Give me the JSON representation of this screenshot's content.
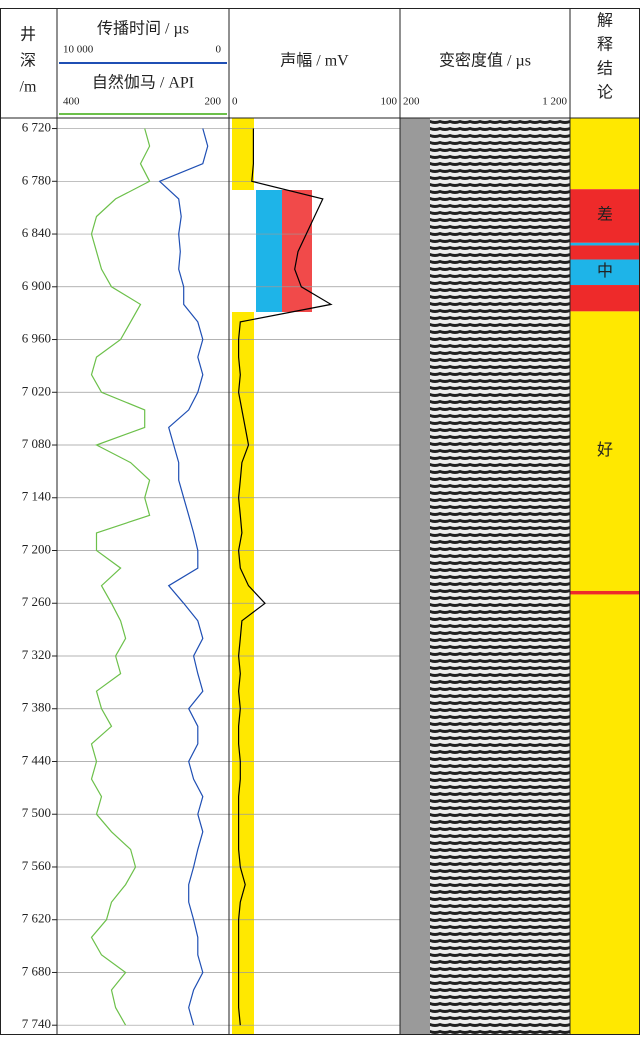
{
  "chart_data": {
    "type": "well-log",
    "depth_title": [
      "井",
      "深",
      "/m"
    ],
    "ylim": [
      6708,
      7750
    ],
    "yticks": [
      {
        "value": 6720,
        "label": "6 720"
      },
      {
        "value": 6780,
        "label": "6 780"
      },
      {
        "value": 6840,
        "label": "6 840"
      },
      {
        "value": 6900,
        "label": "6 900"
      },
      {
        "value": 6960,
        "label": "6 960"
      },
      {
        "value": 7020,
        "label": "7 020"
      },
      {
        "value": 7080,
        "label": "7 080"
      },
      {
        "value": 7140,
        "label": "7 140"
      },
      {
        "value": 7200,
        "label": "7 200"
      },
      {
        "value": 7260,
        "label": "7 260"
      },
      {
        "value": 7320,
        "label": "7 320"
      },
      {
        "value": 7380,
        "label": "7 380"
      },
      {
        "value": 7440,
        "label": "7 440"
      },
      {
        "value": 7500,
        "label": "7 500"
      },
      {
        "value": 7560,
        "label": "7 560"
      },
      {
        "value": 7620,
        "label": "7 620"
      },
      {
        "value": 7680,
        "label": "7 680"
      },
      {
        "value": 7740,
        "label": "7 740"
      }
    ],
    "depth": [
      6720,
      6740,
      6760,
      6780,
      6800,
      6820,
      6840,
      6860,
      6880,
      6900,
      6920,
      6940,
      6960,
      6980,
      7000,
      7020,
      7040,
      7060,
      7080,
      7100,
      7120,
      7140,
      7160,
      7180,
      7200,
      7220,
      7240,
      7260,
      7280,
      7300,
      7320,
      7340,
      7360,
      7380,
      7400,
      7420,
      7440,
      7460,
      7480,
      7500,
      7520,
      7540,
      7560,
      7580,
      7600,
      7620,
      7640,
      7660,
      7680,
      7700,
      7720,
      7740
    ],
    "tracks": [
      {
        "type": "line",
        "series": [
          {
            "name": "传播时间 / µs",
            "color": "#1f4fb4",
            "xlim": [
              10000,
              0
            ],
            "xticks": [
              {
                "value": 10000,
                "label": "10 000"
              },
              0
            ],
            "values": [
              1400,
              1100,
              1400,
              4000,
              2850,
              2700,
              2850,
              2750,
              2850,
              2550,
              2550,
              1700,
              1400,
              1700,
              1400,
              1700,
              2250,
              3450,
              3150,
              2850,
              2850,
              2550,
              2250,
              1950,
              1700,
              1700,
              3450,
              2550,
              1700,
              1400,
              1950,
              1700,
              1400,
              2250,
              1700,
              1700,
              2250,
              1950,
              1400,
              1700,
              1400,
              1700,
              1950,
              2250,
              2250,
              1950,
              1700,
              1700,
              1400,
              1950,
              2250,
              1950
            ]
          },
          {
            "name": "自然伽马 / API",
            "color": "#6cc04a",
            "xlim": [
              400,
              200
            ],
            "xticks": [
              400,
              200
            ],
            "values": [
              298,
              292,
              303,
              292,
              333,
              356,
              362,
              356,
              350,
              338,
              303,
              315,
              327,
              356,
              362,
              350,
              298,
              298,
              356,
              315,
              292,
              298,
              292,
              356,
              356,
              327,
              350,
              338,
              327,
              321,
              333,
              327,
              356,
              350,
              338,
              362,
              356,
              362,
              350,
              356,
              338,
              315,
              309,
              321,
              338,
              344,
              362,
              350,
              321,
              338,
              333,
              321
            ]
          }
        ]
      },
      {
        "type": "line",
        "title": "声幅 / mV",
        "xlim": [
          0,
          100
        ],
        "xticks": [
          0,
          100
        ],
        "series": [
          {
            "color": "#000000",
            "values": [
              13,
              13,
              13,
              12,
              55,
              50,
              45,
              40,
              38,
              42,
              60,
              5,
              4,
              4,
              5,
              4,
              6,
              8,
              10,
              6,
              5,
              4,
              5,
              6,
              4,
              5,
              10,
              20,
              6,
              5,
              4,
              5,
              4,
              5,
              4,
              4,
              5,
              5,
              4,
              4,
              4,
              4,
              5,
              8,
              5,
              4,
              4,
              4,
              4,
              4,
              4,
              5
            ]
          }
        ]
      },
      {
        "type": "vdl",
        "title": "变密度值 / µs",
        "xlim": [
          200,
          1200
        ],
        "xticks": [
          200,
          {
            "value": 1200,
            "label": "1 200"
          }
        ]
      },
      {
        "type": "zones",
        "title": [
          "解",
          "释",
          "结",
          "论"
        ],
        "zones": [
          {
            "top": 6708,
            "bottom": 6789,
            "color": "#ffe800"
          },
          {
            "top": 6789,
            "bottom": 6850,
            "color": "#ee2a2a",
            "label": "差"
          },
          {
            "top": 6850,
            "bottom": 6853,
            "color": "#1eb4e8"
          },
          {
            "top": 6853,
            "bottom": 6869,
            "color": "#ee2a2a"
          },
          {
            "top": 6869,
            "bottom": 6898,
            "color": "#1eb4e8",
            "label": "中"
          },
          {
            "top": 6898,
            "bottom": 6928,
            "color": "#ee2a2a"
          },
          {
            "top": 6928,
            "bottom": 7246,
            "color": "#ffe800",
            "label": "好"
          },
          {
            "top": 7246,
            "bottom": 7250,
            "color": "#ee2a2a"
          },
          {
            "top": 7250,
            "bottom": 7750,
            "color": "#ffe800"
          }
        ]
      }
    ]
  }
}
